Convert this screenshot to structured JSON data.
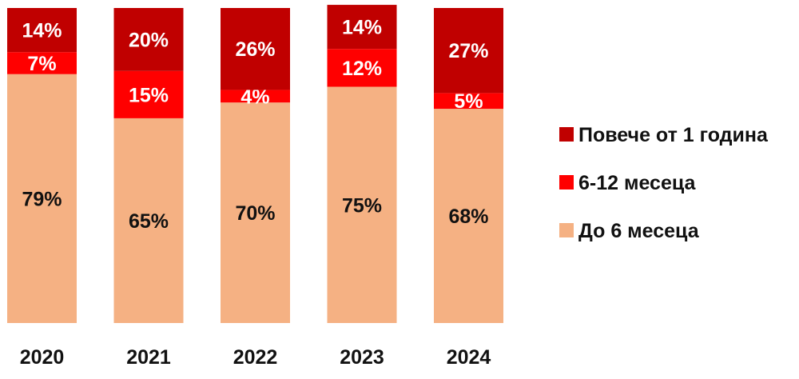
{
  "chart_data": {
    "type": "bar",
    "stacked": true,
    "percent_stacked": true,
    "categories": [
      "2020",
      "2021",
      "2022",
      "2023",
      "2024"
    ],
    "series": [
      {
        "name": "До 6 месеца",
        "values": [
          79,
          65,
          70,
          75,
          68
        ],
        "color": "#F5B183"
      },
      {
        "name": "6-12 месеца",
        "values": [
          7,
          15,
          4,
          12,
          5
        ],
        "color": "#FF0000"
      },
      {
        "name": "Повече от 1 година",
        "values": [
          14,
          20,
          26,
          14,
          27
        ],
        "color": "#C00000"
      }
    ],
    "value_suffix": "%",
    "legend": {
      "position": "right",
      "order": [
        "Повече от 1 година",
        "6-12 месеца",
        "До 6 месеца"
      ]
    },
    "title": "",
    "xlabel": "",
    "ylabel": "",
    "ylim": [
      0,
      100
    ],
    "grid": false
  },
  "colors": {
    "label_dark": "#111111",
    "label_light": "#ffffff"
  }
}
